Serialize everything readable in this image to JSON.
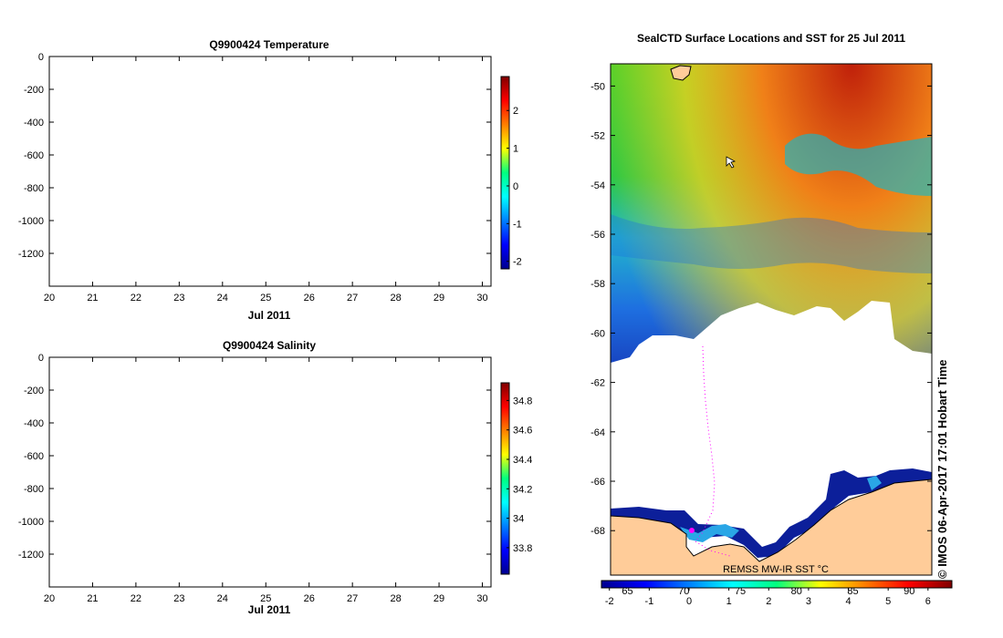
{
  "chart_data": [
    {
      "type": "heatmap",
      "title": "Q9900424  Temperature",
      "xlabel": "Jul 2011",
      "x_ticks": [
        "20",
        "21",
        "22",
        "23",
        "24",
        "25",
        "26",
        "27",
        "28",
        "29",
        "30"
      ],
      "xlim": [
        20,
        30.2
      ],
      "y_ticks": [
        "0",
        "-200",
        "-400",
        "-600",
        "-800",
        "-1000",
        "-1200"
      ],
      "ylim": [
        -1400,
        0
      ],
      "colorbar": {
        "ticks": [
          "2",
          "1",
          "0",
          "-1",
          "-2"
        ],
        "range": [
          -2.2,
          2.9
        ]
      },
      "values": []
    },
    {
      "type": "heatmap",
      "title": "Q9900424  Salinity",
      "xlabel": "Jul 2011",
      "x_ticks": [
        "20",
        "21",
        "22",
        "23",
        "24",
        "25",
        "26",
        "27",
        "28",
        "29",
        "30"
      ],
      "xlim": [
        20,
        30.2
      ],
      "y_ticks": [
        "0",
        "-200",
        "-400",
        "-600",
        "-800",
        "-1000",
        "-1200"
      ],
      "ylim": [
        -1400,
        0
      ],
      "colorbar": {
        "ticks": [
          "34.8",
          "34.6",
          "34.4",
          "34.2",
          "34",
          "33.8"
        ],
        "range": [
          33.62,
          34.92
        ]
      },
      "values": []
    },
    {
      "type": "heatmap",
      "title": "SealCTD Surface Locations and SST for 25 Jul 2011",
      "y_ticks": [
        "-50",
        "-52",
        "-54",
        "-56",
        "-58",
        "-60",
        "-62",
        "-64",
        "-66",
        "-68"
      ],
      "ylim": [
        -69.8,
        -49.1
      ],
      "lon_ticks": [
        "65",
        "70",
        "75",
        "80",
        "85",
        "90"
      ],
      "lon_range": [
        63.5,
        92
      ],
      "colorbar": {
        "ticks": [
          "-2",
          "-1",
          "0",
          "1",
          "2",
          "3",
          "4",
          "5",
          "6"
        ],
        "range": [
          -2.2,
          6.6
        ]
      },
      "colorbar_label": "REMSS MW-IR SST °C",
      "watermark": "© IMOS 06-Apr-2017 17:01 Hobart Time"
    }
  ],
  "colors": {
    "land": "#ffcc99",
    "ice": "#ffffff",
    "track": "#ff00ff"
  }
}
